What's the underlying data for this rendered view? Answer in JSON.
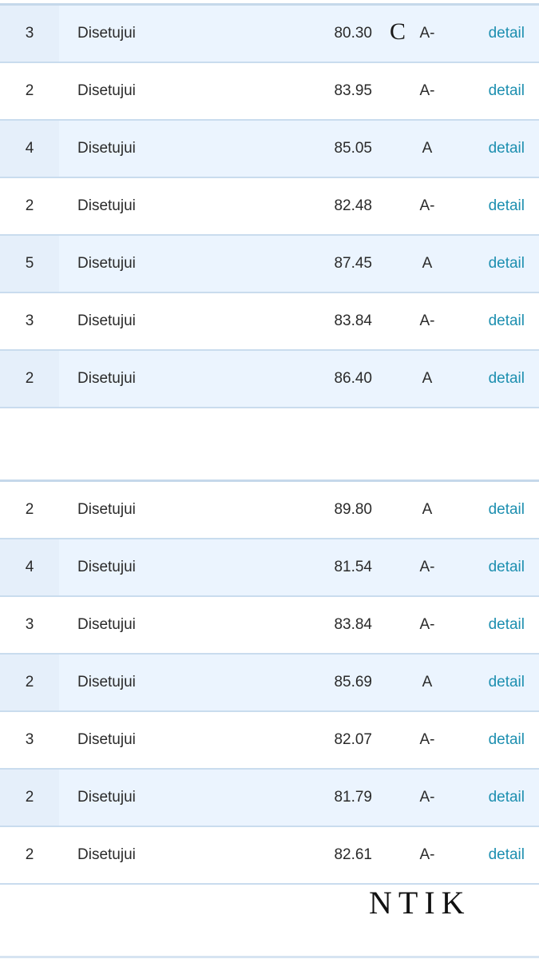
{
  "table1": {
    "rows": [
      {
        "num": "3",
        "status": "Disetujui",
        "score": "80.30",
        "grade": "A-",
        "link": "detail",
        "shaded": true
      },
      {
        "num": "2",
        "status": "Disetujui",
        "score": "83.95",
        "grade": "A-",
        "link": "detail",
        "shaded": false
      },
      {
        "num": "4",
        "status": "Disetujui",
        "score": "85.05",
        "grade": "A",
        "link": "detail",
        "shaded": true
      },
      {
        "num": "2",
        "status": "Disetujui",
        "score": "82.48",
        "grade": "A-",
        "link": "detail",
        "shaded": false
      },
      {
        "num": "5",
        "status": "Disetujui",
        "score": "87.45",
        "grade": "A",
        "link": "detail",
        "shaded": true
      },
      {
        "num": "3",
        "status": "Disetujui",
        "score": "83.84",
        "grade": "A-",
        "link": "detail",
        "shaded": false
      },
      {
        "num": "2",
        "status": "Disetujui",
        "score": "86.40",
        "grade": "A",
        "link": "detail",
        "shaded": true
      }
    ]
  },
  "table2": {
    "rows": [
      {
        "num": "2",
        "status": "Disetujui",
        "score": "89.80",
        "grade": "A",
        "link": "detail",
        "shaded": false
      },
      {
        "num": "4",
        "status": "Disetujui",
        "score": "81.54",
        "grade": "A-",
        "link": "detail",
        "shaded": true
      },
      {
        "num": "3",
        "status": "Disetujui",
        "score": "83.84",
        "grade": "A-",
        "link": "detail",
        "shaded": false
      },
      {
        "num": "2",
        "status": "Disetujui",
        "score": "85.69",
        "grade": "A",
        "link": "detail",
        "shaded": true
      },
      {
        "num": "3",
        "status": "Disetujui",
        "score": "82.07",
        "grade": "A-",
        "link": "detail",
        "shaded": false
      },
      {
        "num": "2",
        "status": "Disetujui",
        "score": "81.79",
        "grade": "A-",
        "link": "detail",
        "shaded": true
      },
      {
        "num": "2",
        "status": "Disetujui",
        "score": "82.61",
        "grade": "A-",
        "link": "detail",
        "shaded": false
      }
    ]
  },
  "overlay": {
    "letter_c": "C",
    "ntik": "NTIK"
  },
  "colors": {
    "row_shade": "#ebf4fe",
    "border": "#c9dcee",
    "link": "#1d8fb0"
  }
}
